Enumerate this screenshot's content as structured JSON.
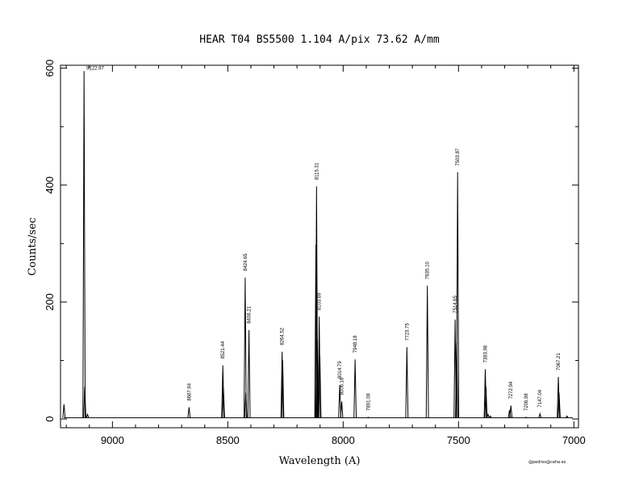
{
  "chart_data": {
    "type": "line",
    "title": "HEAR  T04  BS5500  1.104 A/pix  73.62 A/mm",
    "xlabel": "Wavelength (A)",
    "ylabel": "Counts/sec",
    "credit": "@pedros@caha.es",
    "xlim": [
      9225,
      6980
    ],
    "ylim": [
      -15,
      605
    ],
    "x_reversed": true,
    "x_ticks": [
      9000,
      8500,
      8000,
      7500,
      7000
    ],
    "y_ticks": [
      0,
      200,
      400,
      600
    ],
    "baseline": 2,
    "lines": [
      {
        "x": 9210.0,
        "y": 25
      },
      {
        "x": 9122.97,
        "y": 595,
        "label": "9122.97",
        "labeled": true
      },
      {
        "x": 9120.0,
        "y": 55
      },
      {
        "x": 9108.0,
        "y": 8
      },
      {
        "x": 8667.94,
        "y": 20,
        "label": "8667.94",
        "labeled": true
      },
      {
        "x": 8521.44,
        "y": 92,
        "label": "8521.44",
        "labeled": true
      },
      {
        "x": 8519.0,
        "y": 55
      },
      {
        "x": 8424.65,
        "y": 242,
        "label": "8424.65",
        "labeled": true
      },
      {
        "x": 8422.0,
        "y": 45
      },
      {
        "x": 8408.21,
        "y": 152,
        "label": "8408.21",
        "labeled": true
      },
      {
        "x": 8264.52,
        "y": 115,
        "label": "8264.52",
        "labeled": true
      },
      {
        "x": 8262.0,
        "y": 100
      },
      {
        "x": 8115.31,
        "y": 398,
        "label": "8115.31",
        "labeled": true
      },
      {
        "x": 8118.0,
        "y": 298
      },
      {
        "x": 8112.0,
        "y": 135
      },
      {
        "x": 8103.69,
        "y": 175,
        "label": "8103.69",
        "labeled": true
      },
      {
        "x": 8101.0,
        "y": 108
      },
      {
        "x": 8014.79,
        "y": 58,
        "label": "8014.79",
        "labeled": true
      },
      {
        "x": 8006.16,
        "y": 30,
        "label": "8006.16",
        "labeled": true
      },
      {
        "x": 7948.18,
        "y": 102,
        "label": "7948.18",
        "labeled": true
      },
      {
        "x": 7891.08,
        "y": 3,
        "label": "7891.08",
        "labeled": true
      },
      {
        "x": 7723.75,
        "y": 123,
        "label": "7723.75",
        "labeled": true
      },
      {
        "x": 7635.1,
        "y": 228,
        "label": "7635.10",
        "labeled": true
      },
      {
        "x": 7514.65,
        "y": 170,
        "label": "7514.65",
        "labeled": true
      },
      {
        "x": 7508.0,
        "y": 130
      },
      {
        "x": 7503.87,
        "y": 422,
        "label": "7503.87",
        "labeled": true
      },
      {
        "x": 7383.98,
        "y": 85,
        "label": "7383.98",
        "labeled": true
      },
      {
        "x": 7381.0,
        "y": 55
      },
      {
        "x": 7372.0,
        "y": 8
      },
      {
        "x": 7362.0,
        "y": 5
      },
      {
        "x": 7272.94,
        "y": 23,
        "label": "7272.94",
        "labeled": true
      },
      {
        "x": 7279.0,
        "y": 15
      },
      {
        "x": 7206.98,
        "y": 3,
        "label": "7206.98",
        "labeled": true
      },
      {
        "x": 7147.04,
        "y": 9,
        "label": "7147.04",
        "labeled": true
      },
      {
        "x": 7067.21,
        "y": 72,
        "label": "7067.21",
        "labeled": true
      },
      {
        "x": 7064.0,
        "y": 45
      },
      {
        "x": 7030.0,
        "y": 5
      }
    ]
  }
}
